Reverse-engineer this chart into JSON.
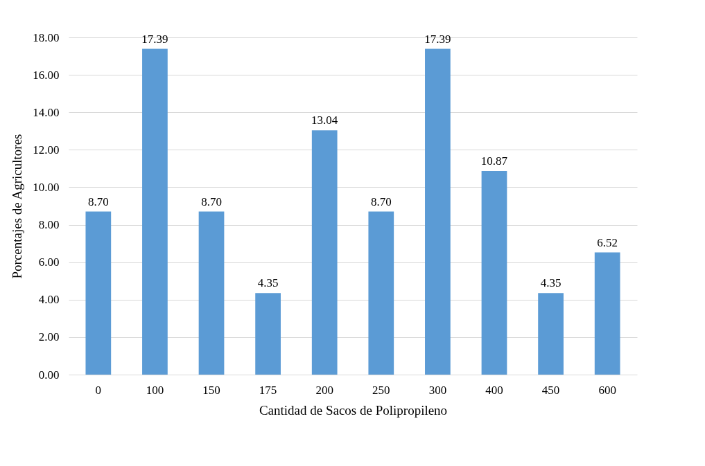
{
  "chart_data": {
    "type": "bar",
    "xlabel": "Cantidad de Sacos de Polipropileno",
    "ylabel": "Porcentajes de Agricultores",
    "categories": [
      "0",
      "100",
      "150",
      "175",
      "200",
      "250",
      "300",
      "400",
      "450",
      "600"
    ],
    "values": [
      8.7,
      17.39,
      8.7,
      4.35,
      13.04,
      8.7,
      17.39,
      10.87,
      4.35,
      6.52
    ],
    "value_labels": [
      "8.70",
      "17.39",
      "8.70",
      "4.35",
      "13.04",
      "8.70",
      "17.39",
      "10.87",
      "4.35",
      "6.52"
    ],
    "color": "#5b9bd5",
    "ylim": [
      0,
      18
    ],
    "yticks": [
      {
        "value": 0,
        "label": "0.00"
      },
      {
        "value": 2,
        "label": "2.00"
      },
      {
        "value": 4,
        "label": "4.00"
      },
      {
        "value": 6,
        "label": "6.00"
      },
      {
        "value": 8,
        "label": "8.00"
      },
      {
        "value": 10,
        "label": "10.00"
      },
      {
        "value": 12,
        "label": "12.00"
      },
      {
        "value": 14,
        "label": "14.00"
      },
      {
        "value": 16,
        "label": "16.00"
      },
      {
        "value": 18,
        "label": "18.00"
      }
    ],
    "grid": "y"
  }
}
